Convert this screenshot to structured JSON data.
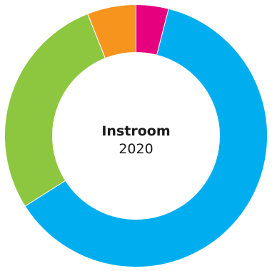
{
  "chart_data": {
    "type": "pie",
    "donut": true,
    "center_title": "Instroom",
    "center_subtitle": "2020",
    "title": "",
    "categories": [
      "",
      "",
      "",
      ""
    ],
    "values": [
      4,
      62,
      28,
      6
    ],
    "colors": [
      "#e6007e",
      "#00aeef",
      "#8dc63f",
      "#f7941d"
    ],
    "start_angle_deg": 0,
    "direction": "clockwise",
    "legend": "none"
  }
}
